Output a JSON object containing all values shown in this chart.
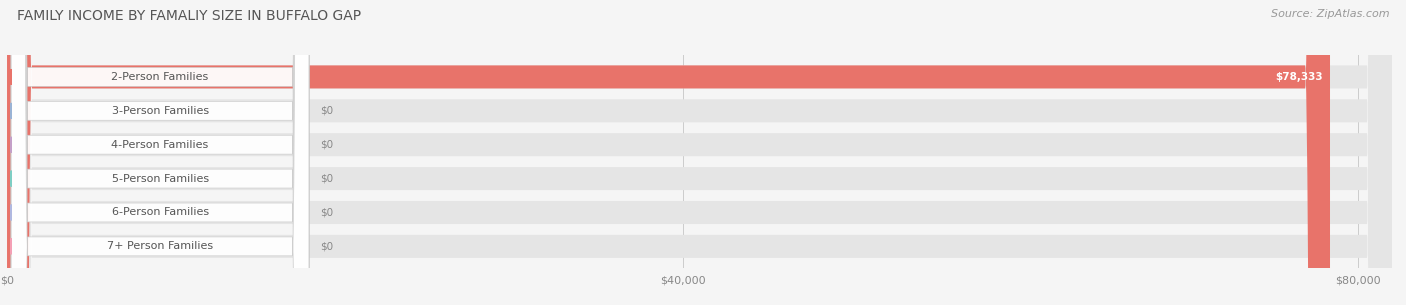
{
  "title": "FAMILY INCOME BY FAMALIY SIZE IN BUFFALO GAP",
  "source": "Source: ZipAtlas.com",
  "categories": [
    "2-Person Families",
    "3-Person Families",
    "4-Person Families",
    "5-Person Families",
    "6-Person Families",
    "7+ Person Families"
  ],
  "values": [
    78333,
    0,
    0,
    0,
    0,
    0
  ],
  "bar_colors": [
    "#e8736a",
    "#9ab3d5",
    "#c4a0c8",
    "#7ecec4",
    "#b0b8e0",
    "#f4a0b5"
  ],
  "value_labels": [
    "$78,333",
    "$0",
    "$0",
    "$0",
    "$0",
    "$0"
  ],
  "xlim_max": 82000,
  "xticks": [
    0,
    40000,
    80000
  ],
  "xticklabels": [
    "$0",
    "$40,000",
    "$80,000"
  ],
  "background_color": "#f5f5f5",
  "bar_bg_color": "#e5e5e5",
  "title_fontsize": 10,
  "source_fontsize": 8,
  "label_fontsize": 8,
  "value_fontsize": 7.5
}
